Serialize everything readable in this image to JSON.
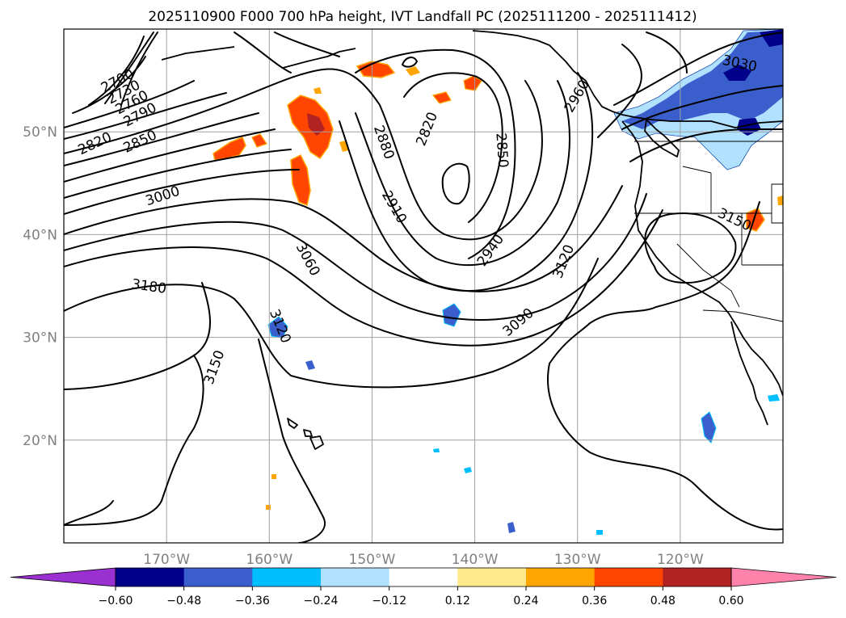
{
  "title": "2025110900 F000 700 hPa height, IVT Landfall PC (2025111200 - 2025111412)",
  "map": {
    "lon_range": [
      -180,
      -110
    ],
    "lat_range": [
      10,
      60
    ],
    "lon_ticks": [
      {
        "lon": -170,
        "label": "170°W"
      },
      {
        "lon": -160,
        "label": "160°W"
      },
      {
        "lon": -150,
        "label": "150°W"
      },
      {
        "lon": -140,
        "label": "140°W"
      },
      {
        "lon": -130,
        "label": "130°W"
      },
      {
        "lon": -120,
        "label": "120°W"
      }
    ],
    "lat_ticks": [
      {
        "lat": 20,
        "label": "20°N"
      },
      {
        "lat": 30,
        "label": "30°N"
      },
      {
        "lat": 40,
        "label": "40°N"
      },
      {
        "lat": 50,
        "label": "50°N"
      }
    ],
    "grid": true
  },
  "contour_labels": [
    {
      "text": "2700",
      "lon": -174.8,
      "lat": 55.0,
      "rot": -28
    },
    {
      "text": "2730",
      "lon": -174.2,
      "lat": 53.9,
      "rot": -28
    },
    {
      "text": "2760",
      "lon": -173.4,
      "lat": 52.9,
      "rot": -28
    },
    {
      "text": "2790",
      "lon": -172.6,
      "lat": 51.7,
      "rot": -28
    },
    {
      "text": "2820",
      "lon": -177.0,
      "lat": 48.9,
      "rot": -25
    },
    {
      "text": "2850",
      "lon": -172.6,
      "lat": 49.1,
      "rot": -25
    },
    {
      "text": "3000",
      "lon": -170.4,
      "lat": 43.8,
      "rot": -18
    },
    {
      "text": "3180",
      "lon": -171.7,
      "lat": 35.0,
      "rot": 8
    },
    {
      "text": "3060",
      "lon": -156.2,
      "lat": 37.6,
      "rot": 62
    },
    {
      "text": "3120",
      "lon": -158.9,
      "lat": 31.1,
      "rot": 68
    },
    {
      "text": "3150",
      "lon": -165.4,
      "lat": 27.1,
      "rot": -70
    },
    {
      "text": "2880",
      "lon": -148.8,
      "lat": 49.0,
      "rot": 70
    },
    {
      "text": "2910",
      "lon": -147.8,
      "lat": 42.7,
      "rot": 60
    },
    {
      "text": "2820",
      "lon": -144.7,
      "lat": 50.3,
      "rot": -68
    },
    {
      "text": "2850",
      "lon": -137.3,
      "lat": 48.2,
      "rot": 86
    },
    {
      "text": "2940",
      "lon": -138.5,
      "lat": 38.5,
      "rot": -55
    },
    {
      "text": "3090",
      "lon": -135.8,
      "lat": 31.5,
      "rot": -40
    },
    {
      "text": "3120",
      "lon": -131.4,
      "lat": 37.4,
      "rot": -68
    },
    {
      "text": "2960",
      "lon": -130.1,
      "lat": 53.5,
      "rot": -60
    },
    {
      "text": "3030",
      "lon": -114.2,
      "lat": 56.7,
      "rot": 12
    },
    {
      "text": "3150",
      "lon": -114.7,
      "lat": 41.5,
      "rot": 25
    }
  ],
  "colorbar": {
    "levels": [
      -0.6,
      -0.48,
      -0.36,
      -0.24,
      -0.12,
      0.12,
      0.24,
      0.36,
      0.48,
      0.6
    ],
    "tick_labels": [
      "−0.60",
      "−0.48",
      "−0.36",
      "−0.24",
      "−0.12",
      "0.12",
      "0.24",
      "0.36",
      "0.48",
      "0.60"
    ],
    "colors": [
      "#9b30d0",
      "#00008b",
      "#3a5fcd",
      "#00bfff",
      "#b0e2ff",
      "#ffffff",
      "#ffe98a",
      "#ffa500",
      "#ff4500",
      "#b22222",
      "#ff82ab"
    ],
    "extend": "both"
  }
}
